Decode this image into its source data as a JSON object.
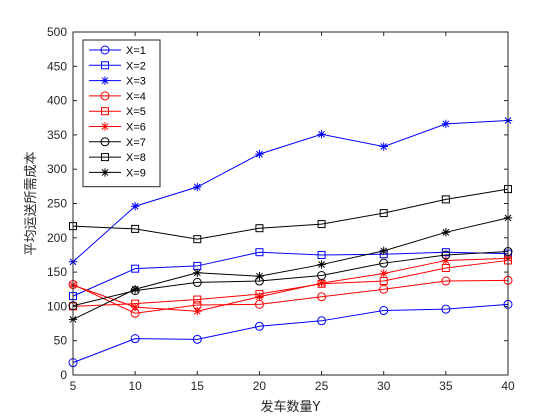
{
  "chart_data": {
    "type": "line",
    "xlabel": "发车数量Y",
    "ylabel": "平均运送所需成本",
    "xlim": [
      5,
      40
    ],
    "ylim": [
      0,
      500
    ],
    "xticks": [
      "5",
      "10",
      "15",
      "20",
      "25",
      "30",
      "35",
      "40"
    ],
    "yticks": [
      "0",
      "50",
      "100",
      "150",
      "200",
      "250",
      "300",
      "350",
      "400",
      "450",
      "500"
    ],
    "x": [
      5,
      10,
      15,
      20,
      25,
      30,
      35,
      40
    ],
    "grid": false,
    "legend_position": "top-left",
    "series": [
      {
        "name": "X=1",
        "color": "#0000ff",
        "marker": "circle",
        "values": [
          18,
          53,
          52,
          71,
          79,
          94,
          96,
          103
        ]
      },
      {
        "name": "X=2",
        "color": "#0000ff",
        "marker": "square",
        "values": [
          115,
          155,
          159,
          179,
          175,
          176,
          179,
          177
        ]
      },
      {
        "name": "X=3",
        "color": "#0000ff",
        "marker": "star",
        "values": [
          165,
          246,
          274,
          322,
          351,
          333,
          366,
          371
        ]
      },
      {
        "name": "X=4",
        "color": "#ff0000",
        "marker": "circle",
        "values": [
          132,
          90,
          102,
          103,
          114,
          125,
          137,
          138
        ]
      },
      {
        "name": "X=5",
        "color": "#ff0000",
        "marker": "square",
        "values": [
          100,
          104,
          110,
          118,
          133,
          137,
          156,
          167
        ]
      },
      {
        "name": "X=6",
        "color": "#ff0000",
        "marker": "star",
        "values": [
          131,
          99,
          93,
          114,
          134,
          148,
          167,
          170
        ]
      },
      {
        "name": "X=7",
        "color": "#000000",
        "marker": "circle",
        "values": [
          101,
          123,
          135,
          137,
          145,
          163,
          175,
          180
        ]
      },
      {
        "name": "X=8",
        "color": "#000000",
        "marker": "square",
        "values": [
          217,
          213,
          198,
          214,
          220,
          236,
          256,
          271
        ]
      },
      {
        "name": "X=9",
        "color": "#000000",
        "marker": "star",
        "values": [
          81,
          125,
          149,
          144,
          161,
          181,
          208,
          229
        ]
      }
    ]
  }
}
